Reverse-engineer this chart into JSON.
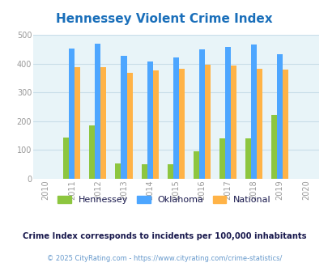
{
  "title": "Hennessey Violent Crime Index",
  "title_color": "#1a6fba",
  "years": [
    2011,
    2012,
    2013,
    2014,
    2015,
    2016,
    2017,
    2018,
    2019
  ],
  "hennessey": [
    143,
    186,
    54,
    51,
    50,
    95,
    140,
    140,
    222
  ],
  "oklahoma": [
    453,
    468,
    428,
    406,
    422,
    450,
    458,
    466,
    431
  ],
  "national": [
    387,
    387,
    367,
    377,
    383,
    397,
    394,
    381,
    379
  ],
  "hennessey_color": "#8dc63f",
  "oklahoma_color": "#4da6ff",
  "national_color": "#ffb347",
  "bg_color": "#e8f4f8",
  "ylim": [
    0,
    500
  ],
  "yticks": [
    0,
    100,
    200,
    300,
    400,
    500
  ],
  "xlim": [
    2009.5,
    2020.5
  ],
  "xticks": [
    2010,
    2011,
    2012,
    2013,
    2014,
    2015,
    2016,
    2017,
    2018,
    2019,
    2020
  ],
  "bar_width": 0.22,
  "subtitle": "Crime Index corresponds to incidents per 100,000 inhabitants",
  "subtitle_color": "#1a1a4e",
  "footer": "© 2025 CityRating.com - https://www.cityrating.com/crime-statistics/",
  "footer_color": "#6699cc",
  "legend_labels": [
    "Hennessey",
    "Oklahoma",
    "National"
  ],
  "grid_color": "#c8dde8",
  "tick_color": "#999999"
}
